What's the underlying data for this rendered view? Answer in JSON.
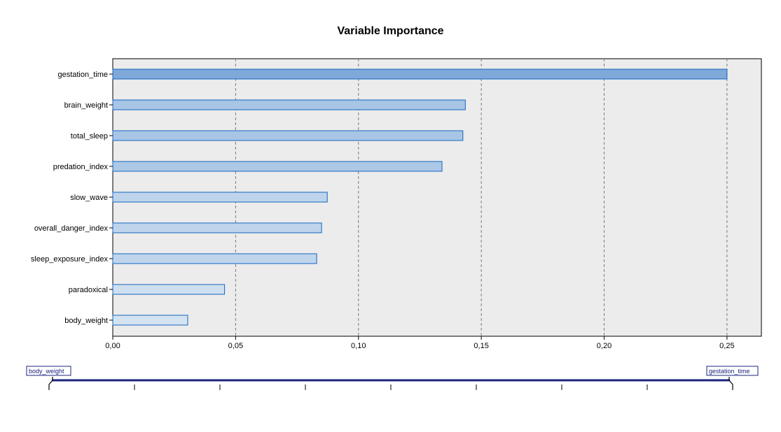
{
  "chart_data": {
    "type": "bar",
    "orientation": "horizontal",
    "title": "Variable Importance",
    "xlabel": "",
    "ylabel": "",
    "categories": [
      "gestation_time",
      "brain_weight",
      "total_sleep",
      "predation_index",
      "slow_wave",
      "overall_danger_index",
      "sleep_exposure_index",
      "paradoxical",
      "body_weight"
    ],
    "values": [
      0.25,
      0.1435,
      0.1425,
      0.134,
      0.0873,
      0.085,
      0.083,
      0.0455,
      0.0305
    ],
    "xlim": [
      0,
      0.264
    ],
    "xticks": [
      0,
      0.05,
      0.1,
      0.15,
      0.2,
      0.25
    ],
    "xtick_labels": [
      "0,00",
      "0,05",
      "0,10",
      "0,15",
      "0,20",
      "0,25"
    ],
    "grid": "vertical-dashed",
    "legend": "none",
    "colors": {
      "bar_strong": "#7fa9d9",
      "bar_light": "#d4e3f1",
      "bar_stroke": "#1565c0",
      "plot_background": "#ececec",
      "grid": "#7a7a7a"
    }
  },
  "slider": {
    "min_label": "body_weight",
    "max_label": "gestation_time",
    "range_start": 0,
    "range_end": 1,
    "tick_count": 9,
    "color": "#1a237e"
  }
}
